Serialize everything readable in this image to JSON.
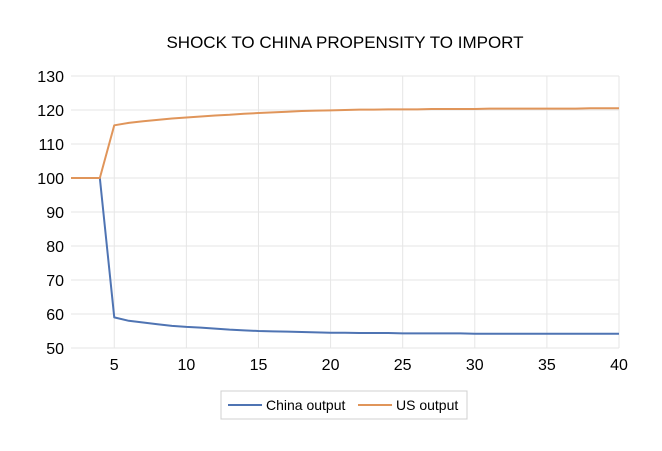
{
  "chart_data": {
    "type": "line",
    "title": "SHOCK TO CHINA PROPENSITY TO IMPORT",
    "xlabel": "",
    "ylabel": "",
    "xlim": [
      2,
      40
    ],
    "ylim": [
      50,
      130
    ],
    "x_ticks": [
      5,
      10,
      15,
      20,
      25,
      30,
      35,
      40
    ],
    "y_ticks": [
      50,
      60,
      70,
      80,
      90,
      100,
      110,
      120,
      130
    ],
    "grid": true,
    "legend_position": "bottom",
    "x": [
      2,
      3,
      4,
      5,
      6,
      7,
      8,
      9,
      10,
      11,
      12,
      13,
      14,
      15,
      16,
      17,
      18,
      19,
      20,
      21,
      22,
      23,
      24,
      25,
      26,
      27,
      28,
      29,
      30,
      31,
      32,
      33,
      34,
      35,
      36,
      37,
      38,
      39,
      40
    ],
    "series": [
      {
        "name": "China output",
        "color": "#4f74b3",
        "values": [
          100,
          100,
          100,
          59,
          58,
          57.5,
          57,
          56.5,
          56.2,
          56,
          55.7,
          55.4,
          55.2,
          55,
          54.9,
          54.8,
          54.7,
          54.6,
          54.5,
          54.5,
          54.4,
          54.4,
          54.4,
          54.3,
          54.3,
          54.3,
          54.3,
          54.3,
          54.2,
          54.2,
          54.2,
          54.2,
          54.2,
          54.2,
          54.2,
          54.2,
          54.2,
          54.2,
          54.2
        ]
      },
      {
        "name": "US output",
        "color": "#e0955a",
        "values": [
          100,
          100,
          100,
          115.5,
          116.2,
          116.7,
          117.1,
          117.5,
          117.8,
          118.1,
          118.4,
          118.6,
          118.9,
          119.1,
          119.3,
          119.5,
          119.7,
          119.8,
          119.9,
          120,
          120.1,
          120.1,
          120.2,
          120.2,
          120.2,
          120.3,
          120.3,
          120.3,
          120.3,
          120.4,
          120.4,
          120.4,
          120.4,
          120.4,
          120.4,
          120.4,
          120.5,
          120.5,
          120.5
        ]
      }
    ]
  }
}
